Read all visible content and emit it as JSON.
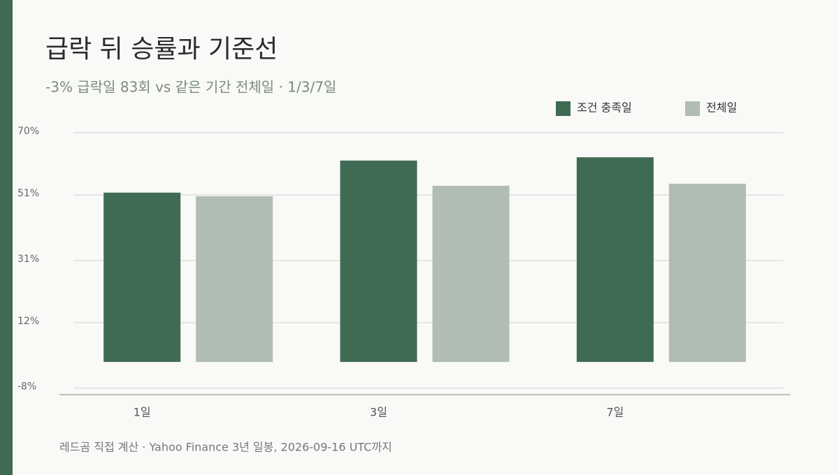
{
  "chart_data": {
    "type": "bar",
    "title": "급락 뒤 승률과 기준선",
    "subtitle": "-3% 급락일 83회 vs 같은 기간 전체일 · 1/3/7일",
    "source": "레드곰 직접 계산 ·  Yahoo Finance 3년 일봉, 2026-09-16 UTC까지",
    "categories": [
      "1일",
      "3일",
      "7일"
    ],
    "series": [
      {
        "name": "조건 충족일",
        "color": "#3f6b54",
        "values": [
          51.7,
          61.5,
          62.5
        ]
      },
      {
        "name": "전체일",
        "color": "#b0bcb4",
        "values": [
          50.6,
          53.8,
          54.4
        ]
      }
    ],
    "ylim": [
      -10,
      70
    ],
    "yticks": [
      {
        "value": -8,
        "label": "-8%"
      },
      {
        "value": 12,
        "label": "12%"
      },
      {
        "value": 31,
        "label": "31%"
      },
      {
        "value": 51,
        "label": "51%"
      },
      {
        "value": 70,
        "label": "70%"
      }
    ],
    "grid": true
  }
}
